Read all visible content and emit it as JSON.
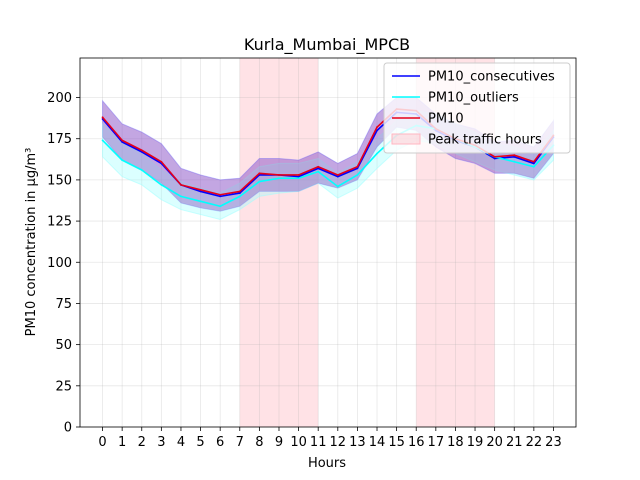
{
  "chart_data": {
    "type": "line",
    "title": "Kurla_Mumbai_MPCB",
    "xlabel": "Hours",
    "ylabel": "PM10 concentration in µg/m³",
    "x": [
      0,
      1,
      2,
      3,
      4,
      5,
      6,
      7,
      8,
      9,
      10,
      11,
      12,
      13,
      14,
      15,
      16,
      17,
      18,
      19,
      20,
      21,
      22,
      23
    ],
    "xlim": [
      -1.15,
      24.15
    ],
    "ylim": [
      0,
      224
    ],
    "yticks": [
      0,
      25,
      50,
      75,
      100,
      125,
      150,
      175,
      200
    ],
    "grid": true,
    "legend_position": "top-right",
    "shaded_regions": [
      {
        "name": "Peak traffic hours",
        "from": 7,
        "to": 11,
        "color": "#ffb6c1"
      },
      {
        "name": "Peak traffic hours",
        "from": 16,
        "to": 20,
        "color": "#ffb6c1"
      }
    ],
    "series": [
      {
        "name": "PM10_consecutives",
        "color": "#0000ff",
        "band_color": "#8080ff",
        "values": [
          187,
          173,
          167,
          160,
          147,
          143,
          140,
          142,
          153,
          153,
          152,
          157,
          152,
          157,
          180,
          191,
          190,
          180,
          174,
          170,
          163,
          164,
          160,
          176
        ],
        "lower": [
          176,
          162,
          156,
          148,
          136,
          133,
          131,
          134,
          143,
          143,
          143,
          148,
          145,
          150,
          170,
          182,
          180,
          170,
          163,
          160,
          154,
          154,
          151,
          166
        ],
        "upper": [
          198,
          184,
          179,
          172,
          157,
          153,
          150,
          151,
          163,
          163,
          162,
          167,
          160,
          166,
          190,
          200,
          200,
          190,
          184,
          181,
          173,
          174,
          170,
          186
        ]
      },
      {
        "name": "PM10_outliers",
        "color": "#00ffff",
        "band_color": "#99ffff",
        "values": [
          174,
          162,
          156,
          147,
          140,
          137,
          134,
          140,
          149,
          151,
          151,
          155,
          146,
          153,
          166,
          177,
          183,
          181,
          175,
          170,
          164,
          161,
          158,
          171
        ],
        "lower": [
          164,
          152,
          147,
          138,
          132,
          129,
          126,
          132,
          140,
          142,
          143,
          148,
          139,
          145,
          157,
          168,
          174,
          172,
          166,
          161,
          156,
          153,
          150,
          162
        ],
        "upper": [
          184,
          172,
          166,
          156,
          149,
          145,
          142,
          148,
          158,
          160,
          160,
          163,
          154,
          161,
          175,
          186,
          192,
          190,
          184,
          179,
          172,
          170,
          166,
          180
        ]
      },
      {
        "name": "PM10",
        "color": "#e6001a",
        "values": [
          188,
          174,
          168,
          161,
          147,
          144,
          141,
          143,
          154,
          153,
          153,
          158,
          153,
          158,
          182,
          193,
          192,
          181,
          175,
          171,
          164,
          165,
          161,
          177
        ]
      }
    ],
    "legend": [
      "PM10_consecutives",
      "PM10_outliers",
      "PM10",
      "Peak traffic hours"
    ]
  }
}
